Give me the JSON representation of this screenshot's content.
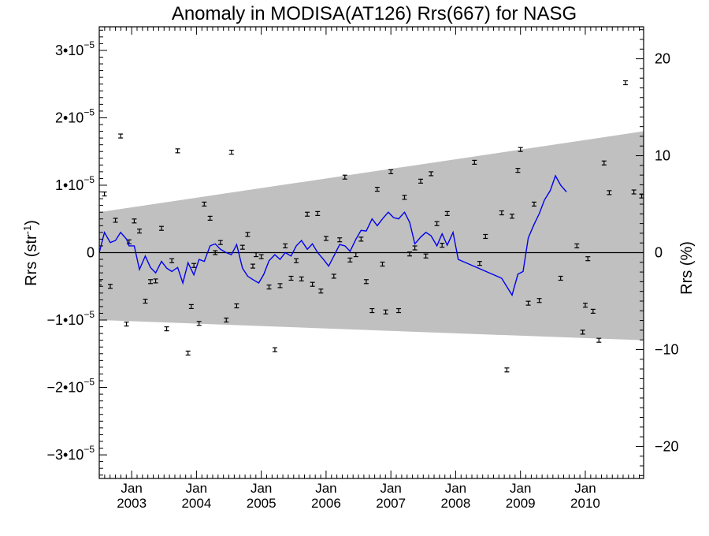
{
  "chart_data": {
    "type": "scatter",
    "title": "Anomaly in MODISA(AT126) Rrs(667) for NASG",
    "ylabel_left_base": "Rrs (str",
    "ylabel_left_exp": "-1",
    "ylabel_left_close": ")",
    "ylabel_right": "Rrs (%)",
    "x_range": [
      2002.5,
      2010.9
    ],
    "ylim_left": [
      -3.35e-05,
      3.35e-05
    ],
    "ylim_right": [
      -23.3,
      23.3
    ],
    "x_major_ticks": [
      {
        "at": 2003.0,
        "top": "Jan",
        "bottom": "2003"
      },
      {
        "at": 2004.0,
        "top": "Jan",
        "bottom": "2004"
      },
      {
        "at": 2005.0,
        "top": "Jan",
        "bottom": "2005"
      },
      {
        "at": 2006.0,
        "top": "Jan",
        "bottom": "2006"
      },
      {
        "at": 2007.0,
        "top": "Jan",
        "bottom": "2007"
      },
      {
        "at": 2008.0,
        "top": "Jan",
        "bottom": "2008"
      },
      {
        "at": 2009.0,
        "top": "Jan",
        "bottom": "2009"
      },
      {
        "at": 2010.0,
        "top": "Jan",
        "bottom": "2010"
      }
    ],
    "y_left_ticks": [
      {
        "value": 3e-05,
        "mant": "3•10",
        "exp": "−5"
      },
      {
        "value": 2e-05,
        "mant": "2•10",
        "exp": "−5"
      },
      {
        "value": 1e-05,
        "mant": "1•10",
        "exp": "−5"
      },
      {
        "value": 0,
        "mant": "0",
        "exp": ""
      },
      {
        "value": -1e-05,
        "mant": "−1•10",
        "exp": "−5"
      },
      {
        "value": -2e-05,
        "mant": "−2•10",
        "exp": "−5"
      },
      {
        "value": -3e-05,
        "mant": "−3•10",
        "exp": "−5"
      }
    ],
    "y_right_ticks": [
      {
        "value": 20,
        "label": "20"
      },
      {
        "value": 10,
        "label": "10"
      },
      {
        "value": 0,
        "label": "0"
      },
      {
        "value": -10,
        "label": "−10"
      },
      {
        "value": -20,
        "label": "−20"
      }
    ],
    "band": {
      "upper": [
        [
          2002.5,
          6e-06
        ],
        [
          2010.9,
          1.8e-05
        ]
      ],
      "lower": [
        [
          2002.5,
          -1e-05
        ],
        [
          2010.9,
          -1.3e-05
        ]
      ],
      "color": "#c0c0c0"
    },
    "zero_line": true,
    "series": [
      {
        "kind": "points_with_errorbars",
        "color": "#000000",
        "points": [
          [
            2002.5,
            -4.5e-06
          ],
          [
            2002.58,
            8.7e-06
          ],
          [
            2002.67,
            -5e-06
          ],
          [
            2002.75,
            4.8e-06
          ],
          [
            2002.83,
            1.73e-05
          ],
          [
            2002.92,
            -1.06e-05
          ],
          [
            2002.96,
            1.6e-06
          ],
          [
            2003.04,
            4.7e-06
          ],
          [
            2003.12,
            3.2e-06
          ],
          [
            2003.21,
            -7.2e-06
          ],
          [
            2003.29,
            -4.3e-06
          ],
          [
            2003.37,
            -4.2e-06
          ],
          [
            2003.46,
            3.6e-06
          ],
          [
            2003.54,
            -1.13e-05
          ],
          [
            2003.62,
            -1.2e-06
          ],
          [
            2003.71,
            1.51e-05
          ],
          [
            2003.87,
            -1.49e-05
          ],
          [
            2003.92,
            -8e-06
          ],
          [
            2003.96,
            -1.9e-06
          ],
          [
            2004.04,
            -1.05e-05
          ],
          [
            2004.12,
            7.2e-06
          ],
          [
            2004.21,
            5.1e-06
          ],
          [
            2004.29,
            0.0
          ],
          [
            2004.37,
            1.5e-06
          ],
          [
            2004.46,
            -1e-05
          ],
          [
            2004.54,
            1.49e-05
          ],
          [
            2004.62,
            -7.9e-06
          ],
          [
            2004.71,
            8e-07
          ],
          [
            2004.79,
            2.7e-06
          ],
          [
            2004.87,
            -2e-06
          ],
          [
            2004.92,
            -3e-07
          ],
          [
            2005.0,
            -6e-07
          ],
          [
            2005.12,
            -5.1e-06
          ],
          [
            2005.21,
            -1.44e-05
          ],
          [
            2005.29,
            -4.9e-06
          ],
          [
            2005.37,
            1e-06
          ],
          [
            2005.46,
            -3.8e-06
          ],
          [
            2005.54,
            -1.2e-06
          ],
          [
            2005.62,
            -3.9e-06
          ],
          [
            2005.71,
            5.7e-06
          ],
          [
            2005.79,
            -4.7e-06
          ],
          [
            2005.87,
            5.8e-06
          ],
          [
            2005.92,
            -5.7e-06
          ],
          [
            2006.0,
            2.1e-06
          ],
          [
            2006.12,
            -3.5e-06
          ],
          [
            2006.21,
            1.9e-06
          ],
          [
            2006.29,
            1.12e-05
          ],
          [
            2006.37,
            -1.1e-06
          ],
          [
            2006.46,
            -3e-07
          ],
          [
            2006.54,
            2e-06
          ],
          [
            2006.62,
            -4.3e-06
          ],
          [
            2006.71,
            -8.6e-06
          ],
          [
            2006.79,
            9.4e-06
          ],
          [
            2006.87,
            -1.7e-06
          ],
          [
            2006.92,
            -8.8e-06
          ],
          [
            2007.0,
            1.2e-05
          ],
          [
            2007.12,
            -8.6e-06
          ],
          [
            2007.21,
            8.2e-06
          ],
          [
            2007.29,
            -2e-07
          ],
          [
            2007.37,
            7e-07
          ],
          [
            2007.46,
            1.06e-05
          ],
          [
            2007.54,
            -5e-07
          ],
          [
            2007.62,
            1.17e-05
          ],
          [
            2007.71,
            4.3e-06
          ],
          [
            2007.79,
            1.1e-06
          ],
          [
            2007.87,
            5.8e-06
          ],
          [
            2008.29,
            1.34e-05
          ],
          [
            2008.37,
            -1.6e-06
          ],
          [
            2008.46,
            2.4e-06
          ],
          [
            2008.71,
            5.9e-06
          ],
          [
            2008.79,
            -1.74e-05
          ],
          [
            2008.87,
            5.4e-06
          ],
          [
            2008.96,
            1.22e-05
          ],
          [
            2009.0,
            1.53e-05
          ],
          [
            2009.12,
            -7.5e-06
          ],
          [
            2009.21,
            7.2e-06
          ],
          [
            2009.29,
            -7.1e-06
          ],
          [
            2009.62,
            -3.8e-06
          ],
          [
            2009.87,
            1e-06
          ],
          [
            2009.96,
            -1.18e-05
          ],
          [
            2010.0,
            -7.8e-06
          ],
          [
            2010.04,
            -9e-07
          ],
          [
            2010.12,
            -8.7e-06
          ],
          [
            2010.21,
            -1.3e-05
          ],
          [
            2010.29,
            1.33e-05
          ],
          [
            2010.37,
            8.9e-06
          ],
          [
            2010.62,
            2.52e-05
          ],
          [
            2010.75,
            9e-06
          ],
          [
            2010.87,
            8.4e-06
          ]
        ]
      },
      {
        "kind": "line",
        "color": "#0000ee",
        "points": [
          [
            2002.5,
            0.0
          ],
          [
            2002.58,
            3e-06
          ],
          [
            2002.67,
            1.5e-06
          ],
          [
            2002.75,
            1.8e-06
          ],
          [
            2002.83,
            3e-06
          ],
          [
            2002.92,
            2e-06
          ],
          [
            2002.96,
            1e-06
          ],
          [
            2003.04,
            1e-06
          ],
          [
            2003.12,
            -2.5e-06
          ],
          [
            2003.21,
            -5e-07
          ],
          [
            2003.29,
            -2.2e-06
          ],
          [
            2003.37,
            -3e-06
          ],
          [
            2003.46,
            -1.3e-06
          ],
          [
            2003.54,
            -2.3e-06
          ],
          [
            2003.62,
            -2.8e-06
          ],
          [
            2003.71,
            -2.2e-06
          ],
          [
            2003.79,
            -4.5e-06
          ],
          [
            2003.87,
            -1.5e-06
          ],
          [
            2003.96,
            -3.3e-06
          ],
          [
            2004.04,
            -1e-06
          ],
          [
            2004.12,
            -1.3e-06
          ],
          [
            2004.21,
            1e-06
          ],
          [
            2004.29,
            1.3e-06
          ],
          [
            2004.37,
            5e-07
          ],
          [
            2004.46,
            0.0
          ],
          [
            2004.54,
            -3e-07
          ],
          [
            2004.62,
            1.2e-06
          ],
          [
            2004.71,
            -2.3e-06
          ],
          [
            2004.79,
            -3.5e-06
          ],
          [
            2004.87,
            -4e-06
          ],
          [
            2004.96,
            -4.5e-06
          ],
          [
            2005.04,
            -3.2e-06
          ],
          [
            2005.12,
            -1.2e-06
          ],
          [
            2005.21,
            -3e-07
          ],
          [
            2005.29,
            -1e-06
          ],
          [
            2005.37,
            0.0
          ],
          [
            2005.46,
            -5e-07
          ],
          [
            2005.54,
            1e-06
          ],
          [
            2005.62,
            1.8e-06
          ],
          [
            2005.71,
            5e-07
          ],
          [
            2005.79,
            1.3e-06
          ],
          [
            2005.87,
            0.0
          ],
          [
            2005.96,
            -1e-06
          ],
          [
            2006.04,
            -2e-06
          ],
          [
            2006.12,
            -5e-07
          ],
          [
            2006.21,
            1.2e-06
          ],
          [
            2006.29,
            1e-06
          ],
          [
            2006.37,
            2e-07
          ],
          [
            2006.46,
            2e-06
          ],
          [
            2006.54,
            3.3e-06
          ],
          [
            2006.62,
            3.2e-06
          ],
          [
            2006.71,
            5e-06
          ],
          [
            2006.79,
            4e-06
          ],
          [
            2006.87,
            5e-06
          ],
          [
            2006.96,
            6e-06
          ],
          [
            2007.04,
            5.2e-06
          ],
          [
            2007.12,
            5e-06
          ],
          [
            2007.21,
            6e-06
          ],
          [
            2007.29,
            4.5e-06
          ],
          [
            2007.37,
            1.3e-06
          ],
          [
            2007.46,
            2.3e-06
          ],
          [
            2007.54,
            3e-06
          ],
          [
            2007.62,
            2.5e-06
          ],
          [
            2007.71,
            1e-06
          ],
          [
            2007.79,
            2.8e-06
          ],
          [
            2007.87,
            1.1e-06
          ],
          [
            2007.96,
            3e-06
          ],
          [
            2008.04,
            -1e-06
          ],
          [
            2008.71,
            -3.8e-06
          ],
          [
            2008.87,
            -6.3e-06
          ],
          [
            2008.96,
            -3.2e-06
          ],
          [
            2009.04,
            -2.8e-06
          ],
          [
            2009.12,
            2.2e-06
          ],
          [
            2009.21,
            4.2e-06
          ],
          [
            2009.29,
            5.8e-06
          ],
          [
            2009.37,
            7.8e-06
          ],
          [
            2009.46,
            9.2e-06
          ],
          [
            2009.54,
            1.14e-05
          ],
          [
            2009.62,
            1e-05
          ],
          [
            2009.71,
            9e-06
          ]
        ]
      }
    ]
  }
}
